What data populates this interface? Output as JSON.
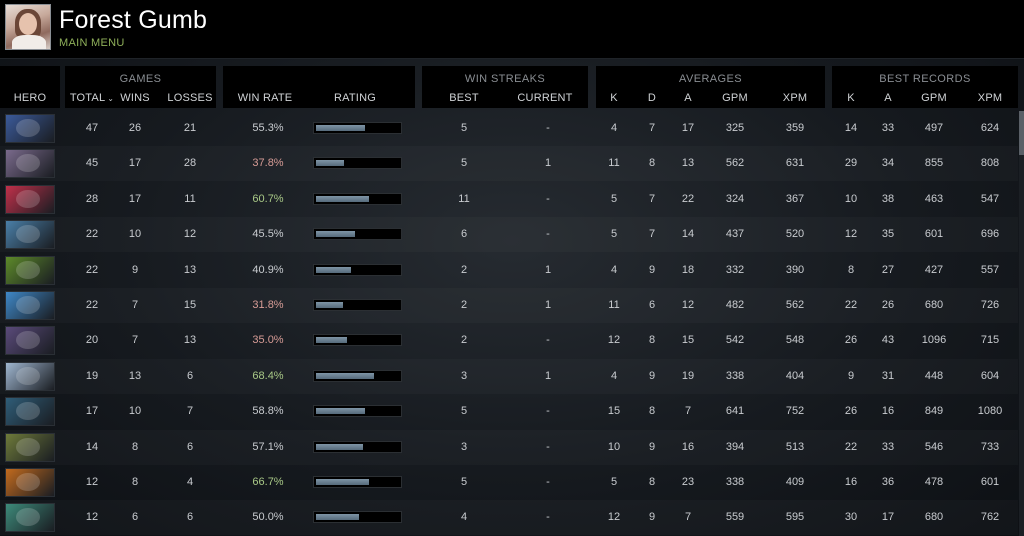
{
  "player": {
    "name": "Forest Gumb",
    "menu_label": "MAIN MENU"
  },
  "groups": {
    "games": "GAMES",
    "win_streaks": "WIN STREAKS",
    "averages": "AVERAGES",
    "best_records": "BEST RECORDS"
  },
  "columns": {
    "hero": "HERO",
    "total": "TOTAL",
    "wins": "WINS",
    "losses": "LOSSES",
    "win_rate": "WIN RATE",
    "rating": "RATING",
    "best": "BEST",
    "current": "CURRENT",
    "avg_k": "K",
    "avg_d": "D",
    "avg_a": "A",
    "avg_gpm": "GPM",
    "avg_xpm": "XPM",
    "best_k": "K",
    "best_a": "A",
    "best_gpm": "GPM",
    "best_xpm": "XPM"
  },
  "sort_indicator": "⌄",
  "colors": {
    "win_rate_good": "#a9c987",
    "win_rate_bad": "#d79c96",
    "rating_fill": "#6f8595",
    "accent_menu": "#8fb05a"
  },
  "rows": [
    {
      "icon": "hero-icon",
      "tint": "#3b5a9a",
      "total": "47",
      "wins": "26",
      "losses": "21",
      "win_rate": "55.3%",
      "tone": "neutral",
      "rating": 0.58,
      "best": "5",
      "current": "-",
      "k": "4",
      "d": "7",
      "a": "17",
      "gpm": "325",
      "xpm": "359",
      "bk": "14",
      "ba": "33",
      "bgpm": "497",
      "bxpm": "624"
    },
    {
      "icon": "hero-icon",
      "tint": "#7a6a8c",
      "total": "45",
      "wins": "17",
      "losses": "28",
      "win_rate": "37.8%",
      "tone": "bad",
      "rating": 0.33,
      "best": "5",
      "current": "1",
      "k": "11",
      "d": "8",
      "a": "13",
      "gpm": "562",
      "xpm": "631",
      "bk": "29",
      "ba": "34",
      "bgpm": "855",
      "bxpm": "808"
    },
    {
      "icon": "hero-icon",
      "tint": "#c0304a",
      "total": "28",
      "wins": "17",
      "losses": "11",
      "win_rate": "60.7%",
      "tone": "good",
      "rating": 0.62,
      "best": "11",
      "current": "-",
      "k": "5",
      "d": "7",
      "a": "22",
      "gpm": "324",
      "xpm": "367",
      "bk": "10",
      "ba": "38",
      "bgpm": "463",
      "bxpm": "547"
    },
    {
      "icon": "hero-icon",
      "tint": "#4a7fa8",
      "total": "22",
      "wins": "10",
      "losses": "12",
      "win_rate": "45.5%",
      "tone": "neutral",
      "rating": 0.46,
      "best": "6",
      "current": "-",
      "k": "5",
      "d": "7",
      "a": "14",
      "gpm": "437",
      "xpm": "520",
      "bk": "12",
      "ba": "35",
      "bgpm": "601",
      "bxpm": "696"
    },
    {
      "icon": "hero-icon",
      "tint": "#5d8a2a",
      "total": "22",
      "wins": "9",
      "losses": "13",
      "win_rate": "40.9%",
      "tone": "neutral",
      "rating": 0.41,
      "best": "2",
      "current": "1",
      "k": "4",
      "d": "9",
      "a": "18",
      "gpm": "332",
      "xpm": "390",
      "bk": "8",
      "ba": "27",
      "bgpm": "427",
      "bxpm": "557"
    },
    {
      "icon": "hero-icon",
      "tint": "#3f88c8",
      "total": "22",
      "wins": "7",
      "losses": "15",
      "win_rate": "31.8%",
      "tone": "bad",
      "rating": 0.32,
      "best": "2",
      "current": "1",
      "k": "11",
      "d": "6",
      "a": "12",
      "gpm": "482",
      "xpm": "562",
      "bk": "22",
      "ba": "26",
      "bgpm": "680",
      "bxpm": "726"
    },
    {
      "icon": "hero-icon",
      "tint": "#5a4a7a",
      "total": "20",
      "wins": "7",
      "losses": "13",
      "win_rate": "35.0%",
      "tone": "bad",
      "rating": 0.36,
      "best": "2",
      "current": "-",
      "k": "12",
      "d": "8",
      "a": "15",
      "gpm": "542",
      "xpm": "548",
      "bk": "26",
      "ba": "43",
      "bgpm": "1096",
      "bxpm": "715"
    },
    {
      "icon": "hero-icon",
      "tint": "#9fb6d0",
      "total": "19",
      "wins": "13",
      "losses": "6",
      "win_rate": "68.4%",
      "tone": "good",
      "rating": 0.68,
      "best": "3",
      "current": "1",
      "k": "4",
      "d": "9",
      "a": "19",
      "gpm": "338",
      "xpm": "404",
      "bk": "9",
      "ba": "31",
      "bgpm": "448",
      "bxpm": "604"
    },
    {
      "icon": "hero-icon",
      "tint": "#2f5d78",
      "total": "17",
      "wins": "10",
      "losses": "7",
      "win_rate": "58.8%",
      "tone": "neutral",
      "rating": 0.58,
      "best": "5",
      "current": "-",
      "k": "15",
      "d": "8",
      "a": "7",
      "gpm": "641",
      "xpm": "752",
      "bk": "26",
      "ba": "16",
      "bgpm": "849",
      "bxpm": "1080"
    },
    {
      "icon": "hero-icon",
      "tint": "#6e7a3a",
      "total": "14",
      "wins": "8",
      "losses": "6",
      "win_rate": "57.1%",
      "tone": "neutral",
      "rating": 0.55,
      "best": "3",
      "current": "-",
      "k": "10",
      "d": "9",
      "a": "16",
      "gpm": "394",
      "xpm": "513",
      "bk": "22",
      "ba": "33",
      "bgpm": "546",
      "bxpm": "733"
    },
    {
      "icon": "hero-icon",
      "tint": "#c26a1e",
      "total": "12",
      "wins": "8",
      "losses": "4",
      "win_rate": "66.7%",
      "tone": "good",
      "rating": 0.62,
      "best": "5",
      "current": "-",
      "k": "5",
      "d": "8",
      "a": "23",
      "gpm": "338",
      "xpm": "409",
      "bk": "16",
      "ba": "36",
      "bgpm": "478",
      "bxpm": "601"
    },
    {
      "icon": "hero-icon",
      "tint": "#3d8a7a",
      "total": "12",
      "wins": "6",
      "losses": "6",
      "win_rate": "50.0%",
      "tone": "neutral",
      "rating": 0.5,
      "best": "4",
      "current": "-",
      "k": "12",
      "d": "9",
      "a": "7",
      "gpm": "559",
      "xpm": "595",
      "bk": "30",
      "ba": "17",
      "bgpm": "680",
      "bxpm": "762"
    }
  ]
}
